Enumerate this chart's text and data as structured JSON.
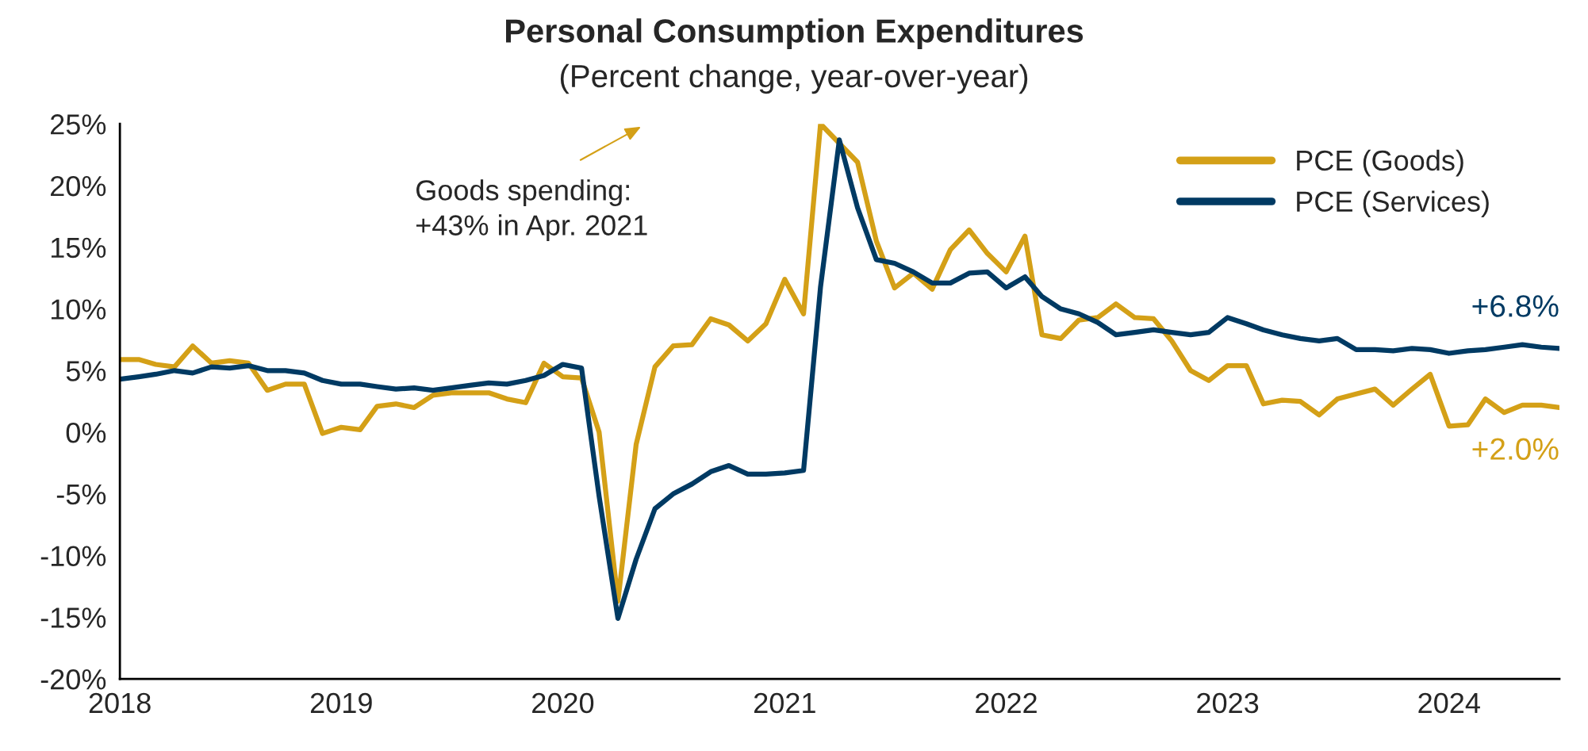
{
  "chart_data": {
    "type": "line",
    "title": "Personal Consumption Expenditures",
    "subtitle": "(Percent change, year-over-year)",
    "x": [
      "2018-01",
      "2018-02",
      "2018-03",
      "2018-04",
      "2018-05",
      "2018-06",
      "2018-07",
      "2018-08",
      "2018-09",
      "2018-10",
      "2018-11",
      "2018-12",
      "2019-01",
      "2019-02",
      "2019-03",
      "2019-04",
      "2019-05",
      "2019-06",
      "2019-07",
      "2019-08",
      "2019-09",
      "2019-10",
      "2019-11",
      "2019-12",
      "2020-01",
      "2020-02",
      "2020-03",
      "2020-04",
      "2020-05",
      "2020-06",
      "2020-07",
      "2020-08",
      "2020-09",
      "2020-10",
      "2020-11",
      "2020-12",
      "2021-01",
      "2021-02",
      "2021-03",
      "2021-04",
      "2021-05",
      "2021-06",
      "2021-07",
      "2021-08",
      "2021-09",
      "2021-10",
      "2021-11",
      "2021-12",
      "2022-01",
      "2022-02",
      "2022-03",
      "2022-04",
      "2022-05",
      "2022-06",
      "2022-07",
      "2022-08",
      "2022-09",
      "2022-10",
      "2022-11",
      "2022-12",
      "2023-01",
      "2023-02",
      "2023-03",
      "2023-04",
      "2023-05",
      "2023-06",
      "2023-07",
      "2023-08",
      "2023-09",
      "2023-10",
      "2023-11",
      "2023-12",
      "2024-01",
      "2024-02",
      "2024-03",
      "2024-04",
      "2024-05",
      "2024-06",
      "2024-07"
    ],
    "series": [
      {
        "name": "PCE (Goods)",
        "color": "#d4a017",
        "values": [
          5.9,
          5.9,
          5.5,
          5.3,
          7.0,
          5.6,
          5.8,
          5.6,
          3.4,
          3.9,
          3.9,
          -0.1,
          0.4,
          0.2,
          2.1,
          2.3,
          2.0,
          3.0,
          3.2,
          3.2,
          3.2,
          2.7,
          2.4,
          5.6,
          4.5,
          4.4,
          0.0,
          -13.7,
          -1.0,
          5.3,
          7.0,
          7.1,
          9.2,
          8.7,
          7.4,
          8.8,
          12.4,
          9.6,
          25,
          null,
          21.9,
          15.5,
          11.7,
          12.9,
          11.6,
          14.8,
          16.4,
          14.5,
          13.0,
          15.9,
          7.9,
          7.6,
          9.1,
          9.3,
          10.4,
          9.3,
          9.2,
          7.4,
          5.0,
          4.2,
          5.4,
          5.4,
          2.3,
          2.6,
          2.5,
          1.4,
          2.7,
          3.1,
          3.5,
          2.2,
          3.5,
          4.7,
          0.5,
          0.6,
          2.7,
          1.6,
          2.2,
          2.2,
          2.0
        ],
        "value_labels": [
          null,
          null,
          null,
          null,
          null,
          null,
          null,
          null,
          null,
          null,
          null,
          null,
          null,
          null,
          null,
          null,
          null,
          null,
          null,
          null,
          null,
          null,
          null,
          null,
          null,
          null,
          null,
          null,
          null,
          null,
          null,
          null,
          null,
          null,
          null,
          null,
          null,
          null,
          null,
          null,
          null,
          null,
          null,
          null,
          null,
          null,
          null,
          null,
          null,
          null,
          null,
          null,
          null,
          null,
          null,
          null,
          null,
          null,
          null,
          null,
          null,
          null,
          null,
          null,
          null,
          null,
          null,
          null,
          null,
          null,
          null,
          null,
          null,
          null,
          null,
          null,
          null,
          null,
          "+2.0%"
        ]
      },
      {
        "name": "PCE (Services)",
        "color": "#003a63",
        "values": [
          4.3,
          4.5,
          4.7,
          5.0,
          4.8,
          5.3,
          5.2,
          5.4,
          5.0,
          5.0,
          4.8,
          4.2,
          3.9,
          3.9,
          3.7,
          3.5,
          3.6,
          3.4,
          3.6,
          3.8,
          4.0,
          3.9,
          4.2,
          4.6,
          5.5,
          5.2,
          -5.2,
          -15.1,
          -10.3,
          -6.2,
          -5.0,
          -4.2,
          -3.2,
          -2.7,
          -3.4,
          -3.4,
          -3.3,
          -3.1,
          11.8,
          23.7,
          18.2,
          14.0,
          13.7,
          13.0,
          12.1,
          12.1,
          12.9,
          13.0,
          11.7,
          12.6,
          11.0,
          10.0,
          9.6,
          8.9,
          7.9,
          8.1,
          8.3,
          8.1,
          7.9,
          8.1,
          9.3,
          8.8,
          8.3,
          7.9,
          7.6,
          7.4,
          7.6,
          6.7,
          6.7,
          6.6,
          6.8,
          6.7,
          6.4,
          6.6,
          6.7,
          6.9,
          7.1,
          6.9,
          6.8
        ],
        "value_labels": [
          null,
          null,
          null,
          null,
          null,
          null,
          null,
          null,
          null,
          null,
          null,
          null,
          null,
          null,
          null,
          null,
          null,
          null,
          null,
          null,
          null,
          null,
          null,
          null,
          null,
          null,
          null,
          null,
          null,
          null,
          null,
          null,
          null,
          null,
          null,
          null,
          null,
          null,
          null,
          null,
          null,
          null,
          null,
          null,
          null,
          null,
          null,
          null,
          null,
          null,
          null,
          null,
          null,
          null,
          null,
          null,
          null,
          null,
          null,
          null,
          null,
          null,
          null,
          null,
          null,
          null,
          null,
          null,
          null,
          null,
          null,
          null,
          null,
          null,
          null,
          null,
          null,
          null,
          "+6.8%"
        ]
      }
    ],
    "annotations": [
      "Goods spending:\n+43% in Apr. 2021"
    ],
    "xlim": [
      "2018-01",
      "2024-07"
    ],
    "xticks": [
      {
        "value": "2018-01",
        "label": "2018"
      },
      {
        "value": "2019-01",
        "label": "2019"
      },
      {
        "value": "2020-01",
        "label": "2020"
      },
      {
        "value": "2021-01",
        "label": "2021"
      },
      {
        "value": "2022-01",
        "label": "2022"
      },
      {
        "value": "2023-01",
        "label": "2023"
      },
      {
        "value": "2024-01",
        "label": "2024"
      }
    ],
    "ylim": [
      -20,
      25
    ],
    "yticks": [
      {
        "value": -20,
        "label": "-20%"
      },
      {
        "value": -15,
        "label": "-15%"
      },
      {
        "value": -10,
        "label": "-10%"
      },
      {
        "value": -5,
        "label": "-5%"
      },
      {
        "value": 0,
        "label": "0%"
      },
      {
        "value": 5,
        "label": "5%"
      },
      {
        "value": 10,
        "label": "10%"
      },
      {
        "value": 15,
        "label": "15%"
      },
      {
        "value": 20,
        "label": "20%"
      },
      {
        "value": 25,
        "label": "25%"
      }
    ],
    "grid": false,
    "legend": "top right",
    "line_style": "solid",
    "marker": "none"
  }
}
